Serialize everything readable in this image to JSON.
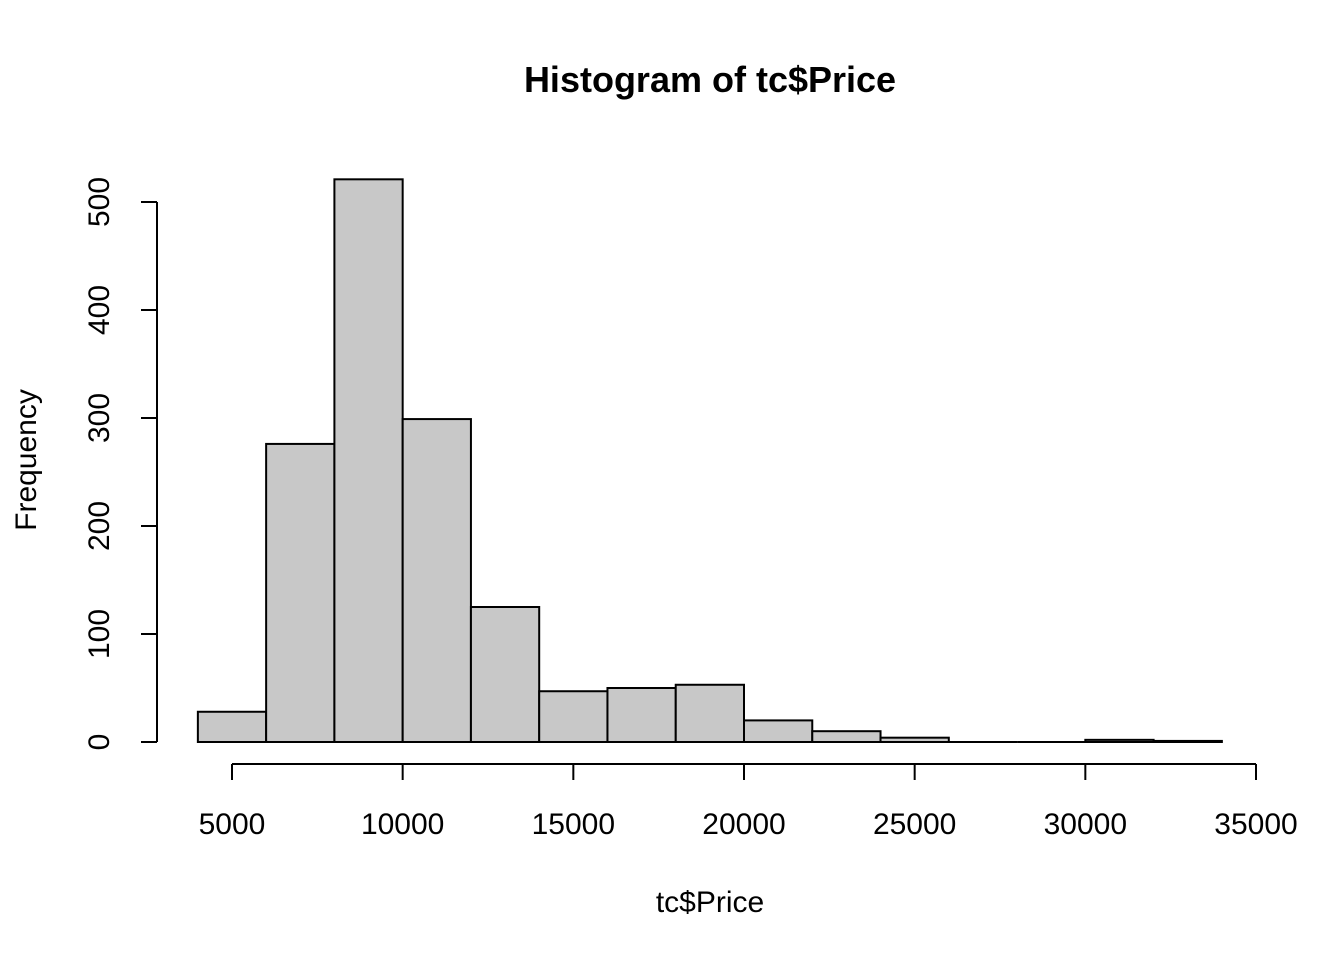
{
  "chart_data": {
    "type": "bar",
    "subtype": "histogram",
    "title": "Histogram of tc$Price",
    "xlabel": "tc$Price",
    "ylabel": "Frequency",
    "bin_edges": [
      4000,
      6000,
      8000,
      10000,
      12000,
      14000,
      16000,
      18000,
      20000,
      22000,
      24000,
      26000,
      28000,
      30000,
      32000,
      34000
    ],
    "values": [
      28,
      276,
      521,
      299,
      125,
      47,
      50,
      53,
      20,
      10,
      4,
      0,
      0,
      2,
      1
    ],
    "xlim": [
      5000,
      35000
    ],
    "ylim": [
      0,
      500
    ],
    "x_ticks": [
      5000,
      10000,
      15000,
      20000,
      25000,
      30000,
      35000
    ],
    "x_tick_labels": [
      "5000",
      "10000",
      "15000",
      "20000",
      "25000",
      "30000",
      "35000"
    ],
    "y_ticks": [
      0,
      100,
      200,
      300,
      400,
      500
    ],
    "y_tick_labels": [
      "0",
      "100",
      "200",
      "300",
      "400",
      "500"
    ],
    "grid": false,
    "legend": "none",
    "bar_color": "#c8c8c8",
    "edge_color": "#000000"
  }
}
